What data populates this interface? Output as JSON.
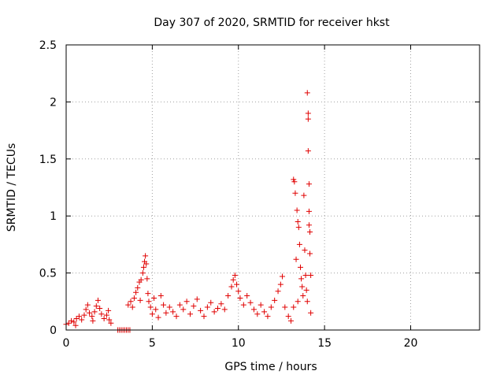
{
  "chart_data": {
    "type": "scatter",
    "title": "Day 307 of 2020, SRMTID for receiver hkst",
    "xlabel": "GPS time / hours",
    "ylabel": "SRMTID / TECUs",
    "xlim": [
      0,
      24
    ],
    "ylim": [
      0,
      2.5
    ],
    "x_ticks": [
      0,
      5,
      10,
      15,
      20
    ],
    "x_tick_labels": [
      "0",
      "5",
      "10",
      "15",
      "20"
    ],
    "y_ticks": [
      0,
      0.5,
      1,
      1.5,
      2,
      2.5
    ],
    "y_tick_labels": [
      "0",
      "0.5",
      "1",
      "1.5",
      "2",
      "2.5"
    ],
    "grid": true,
    "marker": "+",
    "marker_color": "#e00000",
    "series": [
      {
        "name": "hkst",
        "points": [
          [
            0.0,
            0.05
          ],
          [
            0.15,
            0.06
          ],
          [
            0.3,
            0.08
          ],
          [
            0.45,
            0.07
          ],
          [
            0.6,
            0.1
          ],
          [
            0.75,
            0.12
          ],
          [
            0.9,
            0.09
          ],
          [
            1.05,
            0.13
          ],
          [
            1.15,
            0.18
          ],
          [
            1.25,
            0.22
          ],
          [
            1.35,
            0.15
          ],
          [
            1.5,
            0.12
          ],
          [
            1.65,
            0.16
          ],
          [
            1.75,
            0.21
          ],
          [
            1.85,
            0.26
          ],
          [
            1.95,
            0.19
          ],
          [
            2.05,
            0.14
          ],
          [
            2.2,
            0.1
          ],
          [
            2.35,
            0.13
          ],
          [
            2.5,
            0.09
          ],
          [
            2.6,
            0.06
          ],
          [
            2.45,
            0.17
          ],
          [
            1.55,
            0.08
          ],
          [
            0.55,
            0.04
          ],
          [
            3.0,
            0.0
          ],
          [
            3.1,
            0.0
          ],
          [
            3.2,
            0.0
          ],
          [
            3.3,
            0.0
          ],
          [
            3.4,
            0.0
          ],
          [
            3.5,
            0.0
          ],
          [
            3.6,
            0.0
          ],
          [
            3.7,
            0.0
          ],
          [
            3.6,
            0.22
          ],
          [
            3.75,
            0.25
          ],
          [
            3.85,
            0.2
          ],
          [
            3.95,
            0.28
          ],
          [
            4.05,
            0.33
          ],
          [
            4.15,
            0.37
          ],
          [
            4.25,
            0.42
          ],
          [
            4.35,
            0.44
          ],
          [
            4.3,
            0.26
          ],
          [
            4.45,
            0.5
          ],
          [
            4.5,
            0.55
          ],
          [
            4.55,
            0.6
          ],
          [
            4.6,
            0.65
          ],
          [
            4.65,
            0.58
          ],
          [
            4.7,
            0.45
          ],
          [
            4.75,
            0.32
          ],
          [
            4.8,
            0.25
          ],
          [
            4.9,
            0.2
          ],
          [
            5.0,
            0.14
          ],
          [
            5.1,
            0.28
          ],
          [
            5.2,
            0.18
          ],
          [
            5.35,
            0.11
          ],
          [
            5.5,
            0.3
          ],
          [
            5.65,
            0.22
          ],
          [
            5.8,
            0.15
          ],
          [
            6.0,
            0.2
          ],
          [
            6.2,
            0.16
          ],
          [
            6.4,
            0.12
          ],
          [
            6.6,
            0.22
          ],
          [
            6.8,
            0.18
          ],
          [
            7.0,
            0.25
          ],
          [
            7.2,
            0.14
          ],
          [
            7.4,
            0.21
          ],
          [
            7.6,
            0.27
          ],
          [
            7.8,
            0.17
          ],
          [
            8.0,
            0.12
          ],
          [
            8.2,
            0.2
          ],
          [
            8.4,
            0.24
          ],
          [
            8.6,
            0.16
          ],
          [
            8.8,
            0.19
          ],
          [
            9.0,
            0.23
          ],
          [
            9.2,
            0.18
          ],
          [
            9.4,
            0.3
          ],
          [
            9.6,
            0.38
          ],
          [
            9.7,
            0.44
          ],
          [
            9.8,
            0.48
          ],
          [
            9.9,
            0.4
          ],
          [
            10.0,
            0.34
          ],
          [
            10.1,
            0.28
          ],
          [
            10.3,
            0.22
          ],
          [
            10.5,
            0.3
          ],
          [
            10.7,
            0.24
          ],
          [
            10.9,
            0.18
          ],
          [
            11.1,
            0.14
          ],
          [
            11.3,
            0.22
          ],
          [
            11.5,
            0.16
          ],
          [
            11.7,
            0.12
          ],
          [
            11.9,
            0.2
          ],
          [
            12.1,
            0.26
          ],
          [
            12.3,
            0.34
          ],
          [
            12.45,
            0.4
          ],
          [
            12.55,
            0.47
          ],
          [
            12.7,
            0.2
          ],
          [
            12.9,
            0.12
          ],
          [
            13.05,
            0.08
          ],
          [
            13.2,
            0.2
          ],
          [
            13.2,
            1.32
          ],
          [
            13.25,
            1.3
          ],
          [
            13.3,
            1.2
          ],
          [
            13.4,
            1.05
          ],
          [
            13.45,
            0.95
          ],
          [
            13.5,
            0.9
          ],
          [
            13.55,
            0.75
          ],
          [
            13.35,
            0.62
          ],
          [
            13.6,
            0.55
          ],
          [
            13.65,
            0.45
          ],
          [
            13.7,
            0.38
          ],
          [
            13.75,
            0.3
          ],
          [
            13.45,
            0.25
          ],
          [
            13.8,
            1.18
          ],
          [
            13.85,
            0.7
          ],
          [
            13.9,
            0.48
          ],
          [
            13.95,
            0.35
          ],
          [
            14.0,
            0.25
          ],
          [
            14.0,
            2.08
          ],
          [
            14.05,
            1.9
          ],
          [
            14.05,
            1.85
          ],
          [
            14.05,
            1.57
          ],
          [
            14.1,
            1.28
          ],
          [
            14.1,
            1.04
          ],
          [
            14.1,
            0.92
          ],
          [
            14.15,
            0.86
          ],
          [
            14.15,
            0.67
          ],
          [
            14.2,
            0.48
          ],
          [
            14.2,
            0.15
          ]
        ]
      }
    ]
  }
}
